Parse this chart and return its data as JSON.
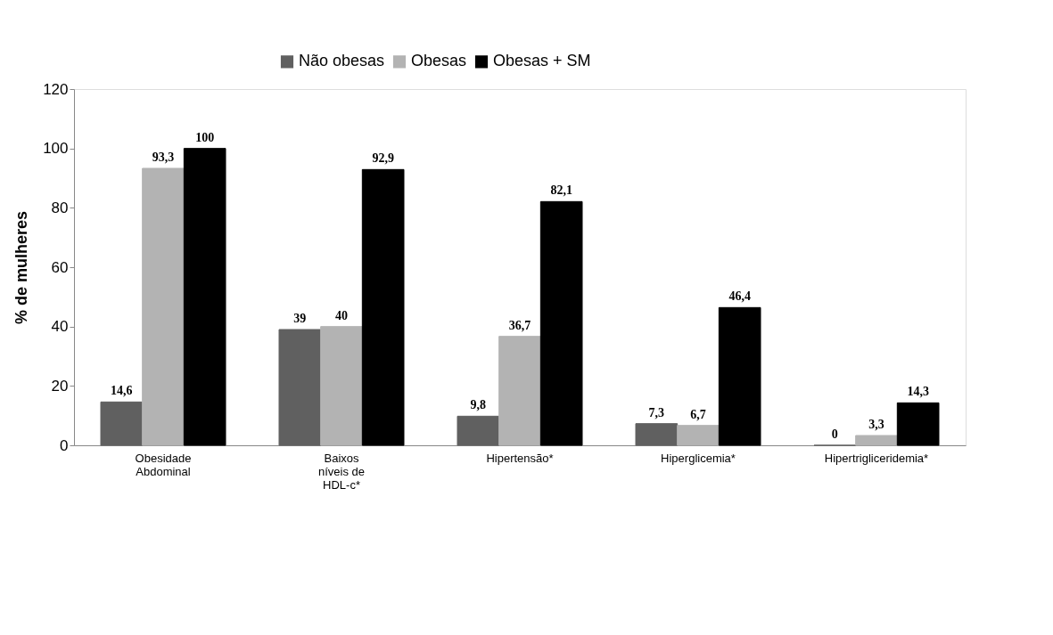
{
  "chart_data": {
    "type": "bar",
    "ylabel": "% de mulheres",
    "categories": [
      "Obesidade Abdominal",
      "Baixos níveis de HDL-c*",
      "Hipertensão*",
      "Hiperglicemia*",
      "Hipertrigliceridemia*"
    ],
    "series": [
      {
        "name": "Não obesas",
        "color": "#606060",
        "values": [
          14.6,
          39,
          9.8,
          7.3,
          0
        ],
        "value_labels": [
          "14,6",
          "39",
          "9,8",
          "7,3",
          "0"
        ]
      },
      {
        "name": "Obesas",
        "color": "#b3b3b3",
        "values": [
          93.3,
          40,
          36.7,
          6.7,
          3.3
        ],
        "value_labels": [
          "93,3",
          "40",
          "36,7",
          "6,7",
          "3,3"
        ]
      },
      {
        "name": "Obesas + SM",
        "color": "#000000",
        "values": [
          100,
          92.9,
          82.1,
          46.4,
          14.3
        ],
        "value_labels": [
          "100",
          "92,9",
          "82,1",
          "46,4",
          "14,3"
        ]
      }
    ],
    "ylim": [
      0,
      120
    ],
    "yticks": [
      0,
      20,
      40,
      60,
      80,
      100,
      120
    ],
    "grid": false,
    "legend": "top"
  }
}
